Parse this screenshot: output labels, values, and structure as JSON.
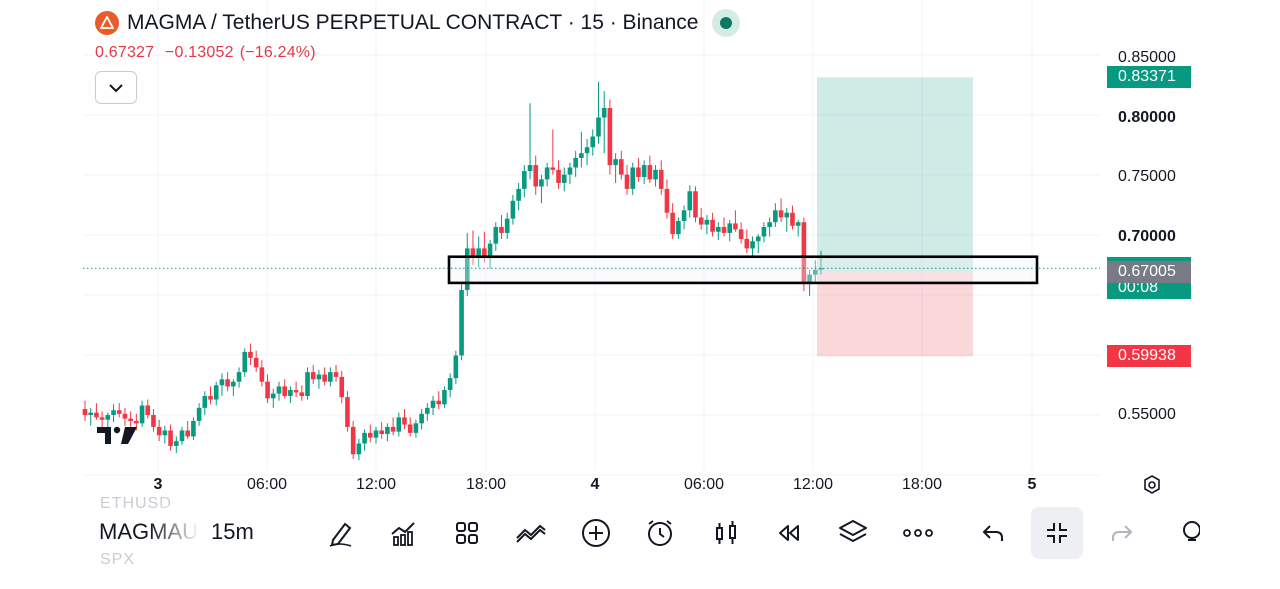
{
  "header": {
    "title": "MAGMA / TetherUS PERPETUAL CONTRACT · 15 · Binance",
    "status_color": "#0c7a60"
  },
  "price_bar": {
    "last": "0.67327",
    "change": "−0.13052",
    "change_pct": "(−16.24%)",
    "color": "#e23a4a"
  },
  "y_axis": {
    "labels": [
      {
        "text": "0.85000",
        "value": 0.85,
        "bold": false
      },
      {
        "text": "0.80000",
        "value": 0.8,
        "bold": true
      },
      {
        "text": "0.75000",
        "value": 0.75,
        "bold": false
      },
      {
        "text": "0.70000",
        "value": 0.7,
        "bold": true
      },
      {
        "text": "0.55000",
        "value": 0.55,
        "bold": false
      }
    ],
    "tags": [
      {
        "name": "tp-price-tag",
        "text": "0.83371",
        "value": 0.83371,
        "color": "#089981"
      },
      {
        "name": "last-price-tag",
        "text": "0.67327",
        "sub": "00:08",
        "value": 0.67327,
        "color": "#089981"
      },
      {
        "name": "entry-price-tag",
        "text": "0.67005",
        "value": 0.67005,
        "color": "#787b86"
      },
      {
        "name": "sl-price-tag",
        "text": "0.59938",
        "value": 0.59938,
        "color": "#f23645"
      }
    ]
  },
  "x_axis": {
    "labels": [
      {
        "text": "3",
        "bold": true
      },
      {
        "text": "06:00",
        "bold": false
      },
      {
        "text": "12:00",
        "bold": false
      },
      {
        "text": "18:00",
        "bold": false
      },
      {
        "text": "4",
        "bold": true
      },
      {
        "text": "06:00",
        "bold": false
      },
      {
        "text": "12:00",
        "bold": false
      },
      {
        "text": "18:00",
        "bold": false
      },
      {
        "text": "5",
        "bold": true
      }
    ]
  },
  "chart_data": {
    "type": "candlestick",
    "ylim": [
      0.5,
      0.85
    ],
    "up_color": "#089981",
    "down_color": "#f23645",
    "position": {
      "entry": 0.67005,
      "take_profit": 0.83371,
      "stop_loss": 0.59938
    },
    "zone": {
      "top": 0.683,
      "bottom": 0.661
    },
    "candles_ohlc": [
      [
        0.555,
        0.562,
        0.545,
        0.55
      ],
      [
        0.55,
        0.556,
        0.541,
        0.552
      ],
      [
        0.552,
        0.56,
        0.546,
        0.548
      ],
      [
        0.548,
        0.553,
        0.54,
        0.546
      ],
      [
        0.546,
        0.552,
        0.539,
        0.55
      ],
      [
        0.55,
        0.559,
        0.544,
        0.554
      ],
      [
        0.554,
        0.56,
        0.548,
        0.551
      ],
      [
        0.551,
        0.556,
        0.541,
        0.547
      ],
      [
        0.547,
        0.553,
        0.538,
        0.545
      ],
      [
        0.545,
        0.551,
        0.537,
        0.543
      ],
      [
        0.543,
        0.562,
        0.54,
        0.558
      ],
      [
        0.558,
        0.563,
        0.547,
        0.55
      ],
      [
        0.55,
        0.555,
        0.536,
        0.54
      ],
      [
        0.54,
        0.546,
        0.528,
        0.533
      ],
      [
        0.533,
        0.541,
        0.526,
        0.537
      ],
      [
        0.537,
        0.542,
        0.52,
        0.524
      ],
      [
        0.524,
        0.532,
        0.518,
        0.528
      ],
      [
        0.528,
        0.54,
        0.525,
        0.537
      ],
      [
        0.537,
        0.545,
        0.53,
        0.532
      ],
      [
        0.532,
        0.548,
        0.529,
        0.545
      ],
      [
        0.545,
        0.56,
        0.541,
        0.556
      ],
      [
        0.556,
        0.57,
        0.55,
        0.566
      ],
      [
        0.566,
        0.574,
        0.559,
        0.563
      ],
      [
        0.563,
        0.578,
        0.558,
        0.575
      ],
      [
        0.575,
        0.585,
        0.566,
        0.58
      ],
      [
        0.58,
        0.586,
        0.57,
        0.574
      ],
      [
        0.574,
        0.58,
        0.566,
        0.578
      ],
      [
        0.578,
        0.59,
        0.573,
        0.586
      ],
      [
        0.586,
        0.606,
        0.582,
        0.603
      ],
      [
        0.603,
        0.61,
        0.592,
        0.598
      ],
      [
        0.598,
        0.604,
        0.586,
        0.59
      ],
      [
        0.59,
        0.596,
        0.574,
        0.578
      ],
      [
        0.578,
        0.584,
        0.56,
        0.564
      ],
      [
        0.564,
        0.572,
        0.556,
        0.568
      ],
      [
        0.568,
        0.578,
        0.562,
        0.574
      ],
      [
        0.574,
        0.58,
        0.564,
        0.566
      ],
      [
        0.566,
        0.574,
        0.56,
        0.571
      ],
      [
        0.571,
        0.578,
        0.565,
        0.569
      ],
      [
        0.569,
        0.575,
        0.562,
        0.566
      ],
      [
        0.566,
        0.59,
        0.563,
        0.586
      ],
      [
        0.586,
        0.592,
        0.576,
        0.58
      ],
      [
        0.58,
        0.588,
        0.572,
        0.584
      ],
      [
        0.584,
        0.59,
        0.575,
        0.578
      ],
      [
        0.578,
        0.59,
        0.574,
        0.586
      ],
      [
        0.586,
        0.592,
        0.578,
        0.582
      ],
      [
        0.582,
        0.587,
        0.56,
        0.565
      ],
      [
        0.565,
        0.57,
        0.536,
        0.54
      ],
      [
        0.54,
        0.545,
        0.513,
        0.517
      ],
      [
        0.517,
        0.53,
        0.512,
        0.526
      ],
      [
        0.526,
        0.538,
        0.52,
        0.535
      ],
      [
        0.535,
        0.542,
        0.527,
        0.531
      ],
      [
        0.531,
        0.54,
        0.526,
        0.537
      ],
      [
        0.537,
        0.544,
        0.53,
        0.534
      ],
      [
        0.534,
        0.543,
        0.528,
        0.54
      ],
      [
        0.54,
        0.548,
        0.533,
        0.536
      ],
      [
        0.536,
        0.552,
        0.532,
        0.548
      ],
      [
        0.548,
        0.555,
        0.538,
        0.542
      ],
      [
        0.542,
        0.548,
        0.532,
        0.535
      ],
      [
        0.535,
        0.546,
        0.531,
        0.543
      ],
      [
        0.543,
        0.555,
        0.538,
        0.551
      ],
      [
        0.551,
        0.56,
        0.545,
        0.556
      ],
      [
        0.556,
        0.566,
        0.55,
        0.562
      ],
      [
        0.562,
        0.57,
        0.555,
        0.559
      ],
      [
        0.559,
        0.574,
        0.556,
        0.571
      ],
      [
        0.571,
        0.585,
        0.565,
        0.581
      ],
      [
        0.581,
        0.604,
        0.576,
        0.6
      ],
      [
        0.6,
        0.66,
        0.596,
        0.655
      ],
      [
        0.655,
        0.703,
        0.65,
        0.69
      ],
      [
        0.69,
        0.705,
        0.676,
        0.684
      ],
      [
        0.684,
        0.7,
        0.674,
        0.69
      ],
      [
        0.69,
        0.704,
        0.678,
        0.682
      ],
      [
        0.682,
        0.697,
        0.673,
        0.694
      ],
      [
        0.694,
        0.712,
        0.688,
        0.708
      ],
      [
        0.708,
        0.718,
        0.698,
        0.703
      ],
      [
        0.703,
        0.72,
        0.698,
        0.715
      ],
      [
        0.715,
        0.735,
        0.71,
        0.73
      ],
      [
        0.73,
        0.745,
        0.722,
        0.74
      ],
      [
        0.74,
        0.76,
        0.733,
        0.755
      ],
      [
        0.755,
        0.812,
        0.748,
        0.76
      ],
      [
        0.76,
        0.768,
        0.735,
        0.742
      ],
      [
        0.742,
        0.752,
        0.728,
        0.748
      ],
      [
        0.748,
        0.762,
        0.742,
        0.758
      ],
      [
        0.758,
        0.79,
        0.752,
        0.756
      ],
      [
        0.756,
        0.764,
        0.74,
        0.745
      ],
      [
        0.745,
        0.758,
        0.738,
        0.752
      ],
      [
        0.752,
        0.762,
        0.744,
        0.758
      ],
      [
        0.758,
        0.772,
        0.75,
        0.766
      ],
      [
        0.766,
        0.788,
        0.758,
        0.77
      ],
      [
        0.77,
        0.782,
        0.76,
        0.775
      ],
      [
        0.775,
        0.79,
        0.768,
        0.784
      ],
      [
        0.784,
        0.83,
        0.778,
        0.8
      ],
      [
        0.8,
        0.822,
        0.77,
        0.808
      ],
      [
        0.808,
        0.815,
        0.752,
        0.76
      ],
      [
        0.76,
        0.77,
        0.745,
        0.765
      ],
      [
        0.765,
        0.772,
        0.748,
        0.752
      ],
      [
        0.752,
        0.76,
        0.735,
        0.74
      ],
      [
        0.74,
        0.762,
        0.735,
        0.758
      ],
      [
        0.758,
        0.766,
        0.746,
        0.75
      ],
      [
        0.75,
        0.764,
        0.744,
        0.76
      ],
      [
        0.76,
        0.768,
        0.745,
        0.748
      ],
      [
        0.748,
        0.76,
        0.742,
        0.756
      ],
      [
        0.756,
        0.764,
        0.735,
        0.74
      ],
      [
        0.74,
        0.748,
        0.715,
        0.72
      ],
      [
        0.72,
        0.728,
        0.698,
        0.702
      ],
      [
        0.702,
        0.716,
        0.698,
        0.713
      ],
      [
        0.713,
        0.726,
        0.706,
        0.722
      ],
      [
        0.722,
        0.743,
        0.716,
        0.738
      ],
      [
        0.738,
        0.742,
        0.712,
        0.716
      ],
      [
        0.716,
        0.724,
        0.706,
        0.71
      ],
      [
        0.71,
        0.718,
        0.702,
        0.714
      ],
      [
        0.714,
        0.72,
        0.7,
        0.704
      ],
      [
        0.704,
        0.712,
        0.697,
        0.708
      ],
      [
        0.708,
        0.716,
        0.7,
        0.703
      ],
      [
        0.703,
        0.714,
        0.696,
        0.711
      ],
      [
        0.711,
        0.722,
        0.704,
        0.706
      ],
      [
        0.706,
        0.712,
        0.694,
        0.698
      ],
      [
        0.698,
        0.706,
        0.686,
        0.69
      ],
      [
        0.69,
        0.7,
        0.684,
        0.696
      ],
      [
        0.696,
        0.702,
        0.686,
        0.7
      ],
      [
        0.7,
        0.712,
        0.695,
        0.708
      ],
      [
        0.708,
        0.716,
        0.7,
        0.712
      ],
      [
        0.712,
        0.728,
        0.708,
        0.722
      ],
      [
        0.722,
        0.732,
        0.712,
        0.716
      ],
      [
        0.716,
        0.724,
        0.704,
        0.72
      ],
      [
        0.72,
        0.726,
        0.706,
        0.709
      ],
      [
        0.709,
        0.714,
        0.7,
        0.712
      ],
      [
        0.712,
        0.716,
        0.654,
        0.66
      ],
      [
        0.66,
        0.672,
        0.65,
        0.668
      ],
      [
        0.668,
        0.68,
        0.66,
        0.672
      ],
      [
        0.672,
        0.688,
        0.668,
        0.6733
      ]
    ]
  },
  "toolbar": {
    "symbol": "MAGMAU",
    "symbol_above": "ETHUSD",
    "symbol_below": "SPX",
    "interval": "15m",
    "buttons": [
      "draw",
      "indicators",
      "layouts",
      "templates",
      "add",
      "alert",
      "replay-bars",
      "replay",
      "layers",
      "more",
      "undo",
      "exit-fullscreen",
      "redo",
      "hint"
    ]
  }
}
